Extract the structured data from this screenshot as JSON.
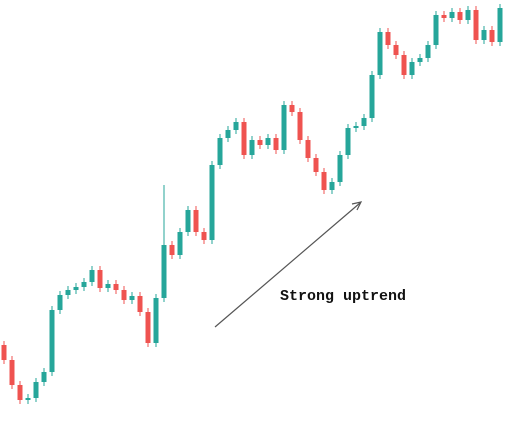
{
  "chart_data": {
    "type": "candlestick",
    "annotation": "Strong uptrend",
    "up_color": "#26a69a",
    "down_color": "#ef5350",
    "ylim": [
      0,
      421
    ],
    "open": [
      76,
      61,
      36,
      21,
      23,
      39,
      49,
      111,
      126,
      131,
      134,
      139,
      151,
      133,
      137,
      131,
      121,
      125,
      109,
      78,
      123,
      176,
      166,
      189,
      211,
      189,
      181,
      256,
      283,
      291,
      299,
      266,
      281,
      276,
      283,
      271,
      316,
      309,
      281,
      263,
      249,
      231,
      239,
      266,
      293,
      295,
      303,
      346,
      389,
      376,
      366,
      346,
      359,
      363,
      376,
      406,
      403,
      409,
      401,
      411,
      381,
      391,
      379
    ],
    "high": [
      80,
      65,
      40,
      27,
      43,
      53,
      115,
      130,
      135,
      138,
      143,
      155,
      155,
      141,
      141,
      135,
      129,
      129,
      113,
      127,
      236,
      180,
      193,
      215,
      215,
      193,
      260,
      287,
      295,
      303,
      303,
      285,
      285,
      287,
      287,
      320,
      320,
      313,
      285,
      267,
      253,
      243,
      270,
      297,
      299,
      307,
      350,
      393,
      393,
      380,
      370,
      363,
      367,
      380,
      410,
      410,
      413,
      413,
      415,
      415,
      395,
      395,
      417
    ],
    "low": [
      57,
      32,
      17,
      17,
      19,
      35,
      45,
      107,
      122,
      127,
      130,
      135,
      129,
      129,
      127,
      117,
      117,
      105,
      74,
      74,
      119,
      162,
      162,
      185,
      185,
      177,
      177,
      252,
      279,
      287,
      262,
      262,
      272,
      272,
      267,
      267,
      305,
      277,
      259,
      245,
      227,
      227,
      235,
      262,
      289,
      291,
      299,
      342,
      372,
      362,
      342,
      342,
      355,
      359,
      372,
      399,
      399,
      397,
      397,
      377,
      377,
      375,
      375
    ],
    "close": [
      61,
      36,
      21,
      23,
      39,
      49,
      111,
      126,
      131,
      134,
      139,
      151,
      133,
      137,
      131,
      121,
      125,
      109,
      78,
      123,
      176,
      166,
      189,
      211,
      189,
      181,
      256,
      283,
      291,
      299,
      266,
      281,
      276,
      283,
      271,
      316,
      309,
      281,
      263,
      249,
      231,
      239,
      266,
      293,
      295,
      303,
      346,
      389,
      376,
      366,
      346,
      359,
      363,
      376,
      406,
      403,
      409,
      401,
      411,
      381,
      391,
      379,
      413
    ]
  }
}
